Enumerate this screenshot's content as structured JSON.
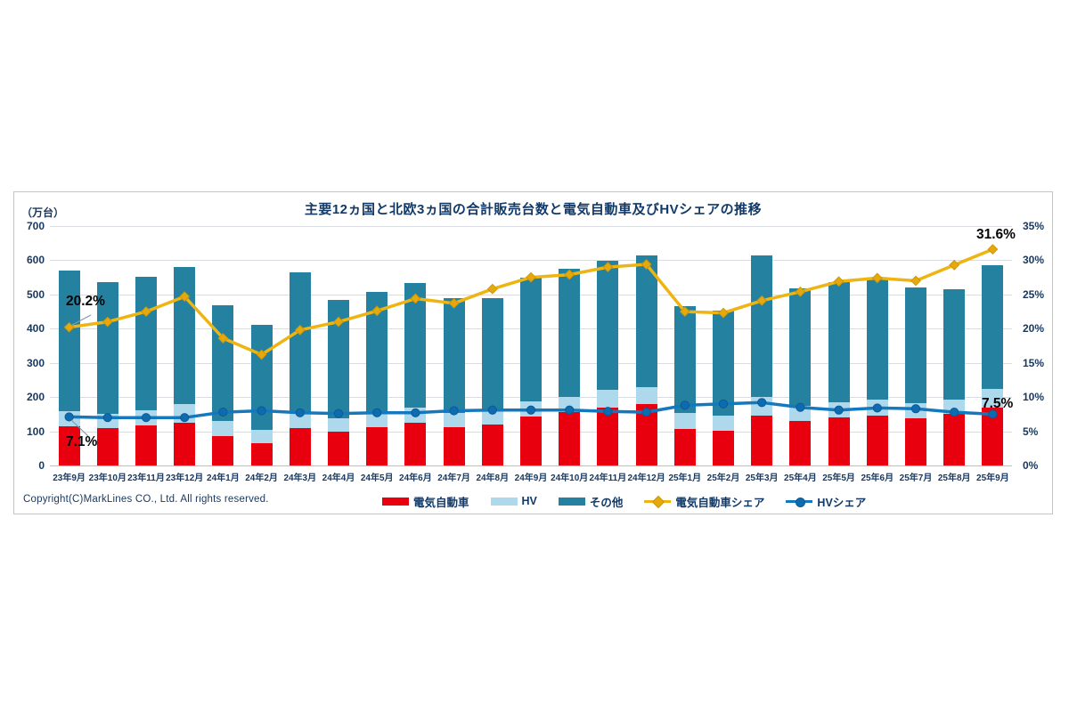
{
  "copyright": "Copyright(C)MarkLines CO., Ltd. All rights reserved.",
  "panel": {
    "border_color": "#b9c6d6",
    "background": "#ffffff"
  },
  "chart_data": {
    "type": "bar",
    "subtype": "stacked-bar-with-lines",
    "title": "主要12ヵ国と北欧3ヵ国の合計販売台数と電気自動車及びHVシェアの推移",
    "grid": true,
    "legend_position": "bottom",
    "left_axis": {
      "unit": "（万台）",
      "min": 0,
      "max": 700,
      "step": 100,
      "ticks": [
        "700",
        "600",
        "500",
        "400",
        "300",
        "200",
        "100",
        "0"
      ]
    },
    "right_axis": {
      "min": 0,
      "max": 35,
      "step": 5,
      "ticks": [
        "35%",
        "30%",
        "25%",
        "20%",
        "15%",
        "10%",
        "5%",
        "0%"
      ]
    },
    "categories": [
      "23年9月",
      "23年10月",
      "23年11月",
      "23年12月",
      "24年1月",
      "24年2月",
      "24年3月",
      "24年4月",
      "24年5月",
      "24年6月",
      "24年7月",
      "24年8月",
      "24年9月",
      "24年10月",
      "24年11月",
      "24年12月",
      "25年1月",
      "25年2月",
      "25年3月",
      "25年4月",
      "25年5月",
      "25年6月",
      "25年7月",
      "25年8月",
      "25年9月"
    ],
    "series": [
      {
        "name": "電気自動車",
        "type": "bar",
        "color": "#e8000f",
        "values": [
          114,
          108,
          116,
          124,
          87,
          64,
          110,
          99,
          113,
          126,
          112,
          120,
          143,
          155,
          168,
          180,
          106,
          102,
          146,
          130,
          141,
          146,
          137,
          150,
          168
        ]
      },
      {
        "name": "HV",
        "type": "bar",
        "color": "#aed9ec",
        "values": [
          45,
          42,
          45,
          55,
          42,
          40,
          45,
          40,
          41,
          42,
          42,
          42,
          45,
          45,
          52,
          50,
          48,
          45,
          55,
          45,
          43,
          46,
          44,
          42,
          55
        ]
      },
      {
        "name": "その他",
        "type": "bar",
        "color": "#2581a0",
        "values": [
          410,
          387,
          391,
          401,
          339,
          306,
          410,
          344,
          354,
          366,
          334,
          327,
          362,
          375,
          378,
          383,
          313,
          305,
          414,
          343,
          352,
          352,
          339,
          323,
          362
        ]
      },
      {
        "name": "電気自動車シェア",
        "type": "line",
        "color": "#eeb412",
        "marker": "diamond",
        "marker_color": "#e5a90f",
        "marker_edge": "#cf9700",
        "unit": "%",
        "values": [
          20.2,
          21.0,
          22.5,
          24.7,
          18.6,
          16.2,
          19.8,
          21.0,
          22.6,
          24.4,
          23.7,
          25.8,
          27.5,
          27.9,
          29.0,
          29.4,
          22.5,
          22.3,
          24.1,
          25.4,
          26.9,
          27.4,
          27.0,
          29.3,
          31.6
        ]
      },
      {
        "name": "HVシェア",
        "type": "line",
        "color": "#1478be",
        "marker": "circle",
        "marker_color": "#0f6bb0",
        "marker_edge": "#0a5a95",
        "unit": "%",
        "values": [
          7.1,
          7.0,
          7.0,
          7.0,
          7.8,
          8.0,
          7.7,
          7.6,
          7.7,
          7.7,
          8.0,
          8.1,
          8.1,
          8.1,
          7.9,
          7.8,
          8.8,
          9.0,
          9.2,
          8.5,
          8.1,
          8.4,
          8.3,
          7.8,
          7.5
        ]
      }
    ],
    "annotations": [
      {
        "text": "20.2%",
        "series": "電気自動車シェア",
        "point": "first"
      },
      {
        "text": "7.1%",
        "series": "HVシェア",
        "point": "first"
      },
      {
        "text": "31.6%",
        "series": "電気自動車シェア",
        "point": "last"
      },
      {
        "text": "7.5%",
        "series": "HVシェア",
        "point": "last"
      }
    ]
  }
}
